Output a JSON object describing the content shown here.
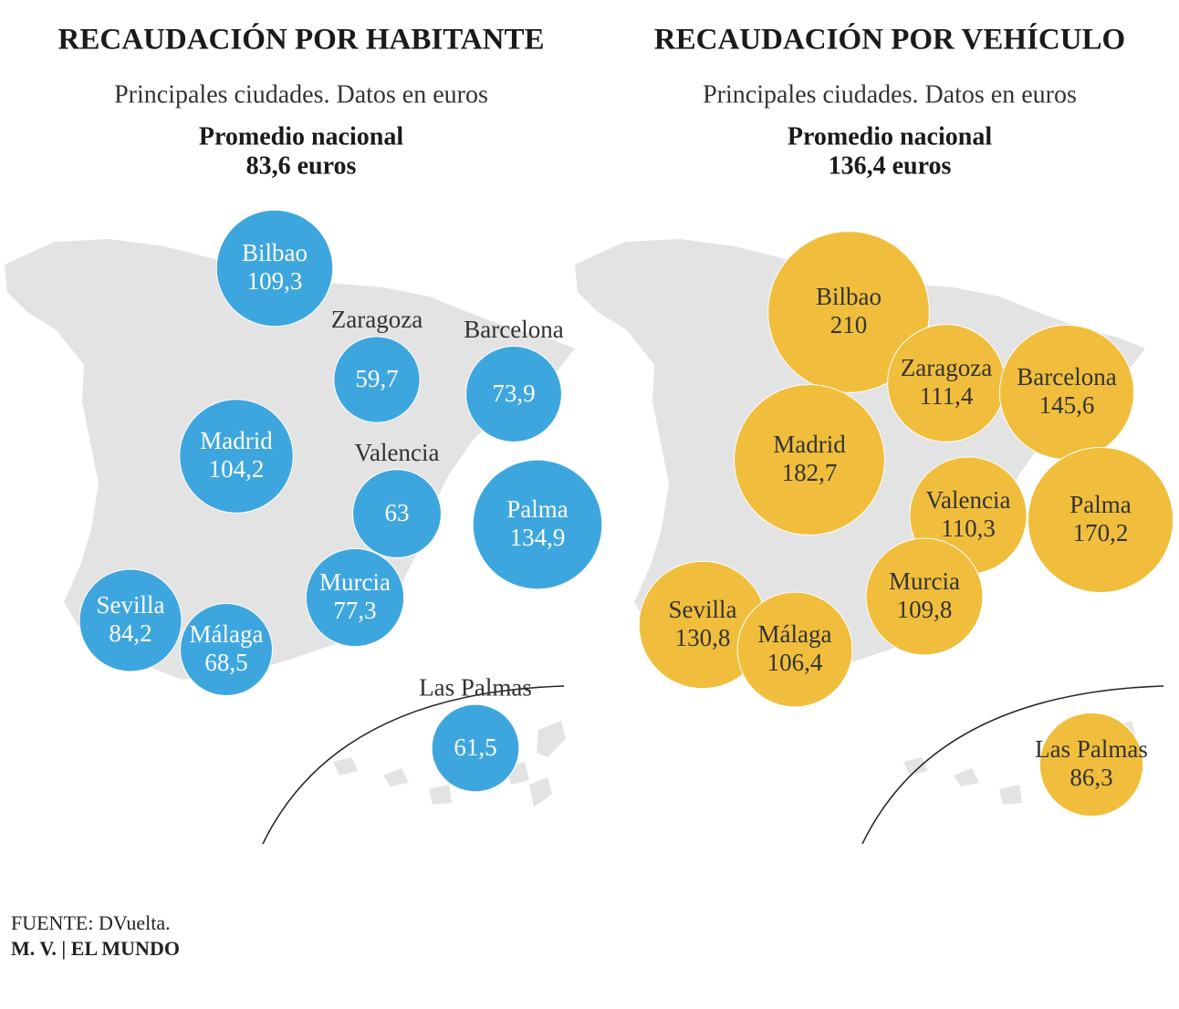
{
  "chart_data": [
    {
      "type": "bubble_map",
      "title": "RECAUDACIÓN POR HABITANTE",
      "subtitle": "Principales ciudades. Datos en euros",
      "note": "Promedio nacional",
      "average": "83,6 euros",
      "color": "#3ea6de",
      "categories": [
        "Bilbao",
        "Zaragoza",
        "Barcelona",
        "Madrid",
        "Valencia",
        "Palma",
        "Murcia",
        "Sevilla",
        "Málaga",
        "Las Palmas"
      ],
      "values": [
        109.3,
        59.7,
        73.9,
        104.2,
        63,
        134.9,
        77.3,
        84.2,
        68.5,
        61.5
      ],
      "value_labels": [
        "109,3",
        "59,7",
        "73,9",
        "104,2",
        "63",
        "134,9",
        "77,3",
        "84,2",
        "68,5",
        "61,5"
      ]
    },
    {
      "type": "bubble_map",
      "title": "RECAUDACIÓN POR VEHÍCULO",
      "subtitle": "Principales ciudades. Datos en euros",
      "note": "Promedio nacional",
      "average": "136,4 euros",
      "color": "#f0be3c",
      "categories": [
        "Bilbao",
        "Zaragoza",
        "Barcelona",
        "Madrid",
        "Valencia",
        "Palma",
        "Murcia",
        "Sevilla",
        "Málaga",
        "Las Palmas"
      ],
      "values": [
        210,
        111.4,
        145.6,
        182.7,
        110.3,
        170.2,
        109.8,
        130.8,
        106.4,
        86.3
      ],
      "value_labels": [
        "210",
        "111,4",
        "145,6",
        "182,7",
        "110,3",
        "170,2",
        "109,8",
        "130,8",
        "106,4",
        "86,3"
      ]
    }
  ],
  "source": "FUENTE: DVuelta.",
  "credit": "M. V. | EL MUNDO"
}
